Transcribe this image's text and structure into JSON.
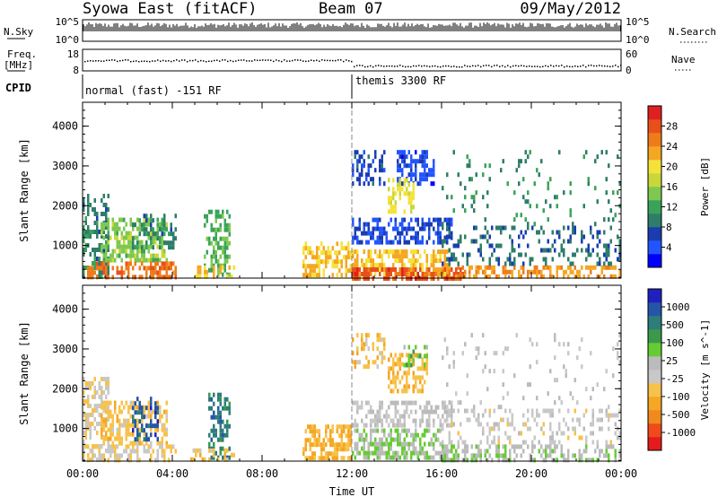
{
  "header": {
    "station": "Syowa East (fitACF)",
    "beam": "Beam 07",
    "date": "09/May/2012"
  },
  "strip1": {
    "left_label": "N.Sky",
    "right_label": "N.Search",
    "left_ticks": [
      "10^5",
      "10^0"
    ],
    "right_ticks": [
      "10^5",
      "10^0"
    ]
  },
  "strip2": {
    "left_label_1": "Freq.",
    "left_label_2": "[MHz]",
    "right_label": "Nave",
    "left_ticks": [
      "18",
      "8"
    ],
    "right_ticks": [
      "60",
      "0"
    ]
  },
  "cpid": {
    "label": "CPID",
    "mode1": "normal (fast) -151 RF",
    "mode2": "themis 3300 RF",
    "mode2_start_hour": 12
  },
  "chart_data": [
    {
      "type": "heatmap",
      "title": "",
      "ylabel": "Slant Range [km]",
      "xlabel": "Time UT",
      "x_ticks": [
        "00:00",
        "04:00",
        "08:00",
        "12:00",
        "16:00",
        "20:00",
        "00:00"
      ],
      "xlim_hours": [
        0,
        24
      ],
      "ylim": [
        180,
        4600
      ],
      "y_ticks": [
        1000,
        2000,
        3000,
        4000
      ],
      "colorbar": {
        "label": "Power [dB]",
        "ticks": [
          "4",
          "8",
          "12",
          "16",
          "20",
          "24",
          "28"
        ],
        "range": [
          0,
          30
        ],
        "colors": [
          "#0000ff",
          "#2255ff",
          "#1a3cb0",
          "#2e7d6a",
          "#3aa35a",
          "#7ec850",
          "#c8d83a",
          "#f4e23a",
          "#f5a623",
          "#f07b1a",
          "#e8501a",
          "#e02020"
        ]
      },
      "regions": [
        {
          "t0": 0.0,
          "t1": 1.2,
          "r0": 180,
          "r1": 2300,
          "value": 9,
          "density": 0.45
        },
        {
          "t0": 0.8,
          "t1": 3.8,
          "r0": 650,
          "r1": 1700,
          "value": 14,
          "density": 0.6
        },
        {
          "t0": 0.2,
          "t1": 4.2,
          "r0": 180,
          "r1": 600,
          "value": 24,
          "density": 0.55
        },
        {
          "t0": 2.2,
          "t1": 4.2,
          "r0": 900,
          "r1": 1800,
          "value": 9,
          "density": 0.35
        },
        {
          "t0": 5.4,
          "t1": 6.6,
          "r0": 300,
          "r1": 1900,
          "value": 12,
          "density": 0.5
        },
        {
          "t0": 4.8,
          "t1": 6.8,
          "r0": 180,
          "r1": 500,
          "value": 20,
          "density": 0.4
        },
        {
          "t0": 9.8,
          "t1": 12.0,
          "r0": 300,
          "r1": 1100,
          "value": 20,
          "density": 0.55
        },
        {
          "t0": 12.0,
          "t1": 16.3,
          "r0": 300,
          "r1": 900,
          "value": 20,
          "density": 0.65
        },
        {
          "t0": 12.0,
          "t1": 17.0,
          "r0": 180,
          "r1": 450,
          "value": 26,
          "density": 0.6
        },
        {
          "t0": 12.0,
          "t1": 16.5,
          "r0": 1100,
          "r1": 1700,
          "value": 5,
          "density": 0.55
        },
        {
          "t0": 12.0,
          "t1": 13.5,
          "r0": 2500,
          "r1": 3400,
          "value": 6,
          "density": 0.45
        },
        {
          "t0": 14.0,
          "t1": 15.7,
          "r0": 2500,
          "r1": 3400,
          "value": 4,
          "density": 0.5
        },
        {
          "t0": 13.6,
          "t1": 14.8,
          "r0": 1900,
          "r1": 2700,
          "value": 18,
          "density": 0.55
        },
        {
          "t0": 16.0,
          "t1": 24.0,
          "r0": 180,
          "r1": 500,
          "value": 22,
          "density": 0.45
        },
        {
          "t0": 16.0,
          "t1": 24.0,
          "r0": 500,
          "r1": 1500,
          "value": 8,
          "density": 0.25
        },
        {
          "t0": 16.0,
          "t1": 24.0,
          "r0": 1500,
          "r1": 3400,
          "value": 10,
          "density": 0.07
        }
      ]
    },
    {
      "type": "heatmap",
      "title": "",
      "ylabel": "Slant Range [km]",
      "xlabel": "Time UT",
      "x_ticks": [
        "00:00",
        "04:00",
        "08:00",
        "12:00",
        "16:00",
        "20:00",
        "00:00"
      ],
      "xlim_hours": [
        0,
        24
      ],
      "ylim": [
        180,
        4600
      ],
      "y_ticks": [
        1000,
        2000,
        3000,
        4000
      ],
      "colorbar": {
        "label": "Velocity [m s^-1]",
        "ticks": [
          "1000",
          "500",
          "100",
          "25",
          "-25",
          "-100",
          "-500",
          "-1000"
        ],
        "range": [
          -1200,
          1200
        ],
        "colors": [
          "#e41a1c",
          "#f04a1a",
          "#f08a1e",
          "#f5a623",
          "#f7c24a",
          "#c8c8c8",
          "#bbbbbb",
          "#66cc33",
          "#3a9a4a",
          "#2e7d7a",
          "#2456a8",
          "#2020c0"
        ]
      },
      "regions": [
        {
          "t0": 0.0,
          "t1": 1.2,
          "r0": 180,
          "r1": 2300,
          "value": -150,
          "density": 0.45
        },
        {
          "t0": 0.8,
          "t1": 3.8,
          "r0": 650,
          "r1": 1700,
          "value": -300,
          "density": 0.55
        },
        {
          "t0": 0.2,
          "t1": 4.2,
          "r0": 180,
          "r1": 600,
          "value": -200,
          "density": 0.5
        },
        {
          "t0": 2.2,
          "t1": 3.4,
          "r0": 700,
          "r1": 1800,
          "value": 900,
          "density": 0.45
        },
        {
          "t0": 5.6,
          "t1": 6.6,
          "r0": 300,
          "r1": 1900,
          "value": 700,
          "density": 0.5
        },
        {
          "t0": 4.8,
          "t1": 6.8,
          "r0": 180,
          "r1": 500,
          "value": -300,
          "density": 0.4
        },
        {
          "t0": 9.8,
          "t1": 12.0,
          "r0": 300,
          "r1": 1100,
          "value": -400,
          "density": 0.55
        },
        {
          "t0": 12.0,
          "t1": 16.0,
          "r0": 300,
          "r1": 1000,
          "value": 200,
          "density": 0.6
        },
        {
          "t0": 12.0,
          "t1": 16.5,
          "r0": 1100,
          "r1": 1700,
          "value": 0,
          "density": 0.5
        },
        {
          "t0": 12.0,
          "t1": 13.5,
          "r0": 2500,
          "r1": 3400,
          "value": -300,
          "density": 0.45
        },
        {
          "t0": 13.6,
          "t1": 15.3,
          "r0": 1900,
          "r1": 2900,
          "value": -350,
          "density": 0.5
        },
        {
          "t0": 14.3,
          "t1": 15.3,
          "r0": 2600,
          "r1": 3100,
          "value": 300,
          "density": 0.4
        },
        {
          "t0": 16.0,
          "t1": 24.0,
          "r0": 180,
          "r1": 600,
          "value": 150,
          "density": 0.45
        },
        {
          "t0": 16.0,
          "t1": 24.0,
          "r0": 600,
          "r1": 1500,
          "value": -100,
          "density": 0.25
        },
        {
          "t0": 16.0,
          "t1": 24.0,
          "r0": 1500,
          "r1": 3400,
          "value": 0,
          "density": 0.06
        }
      ]
    }
  ]
}
